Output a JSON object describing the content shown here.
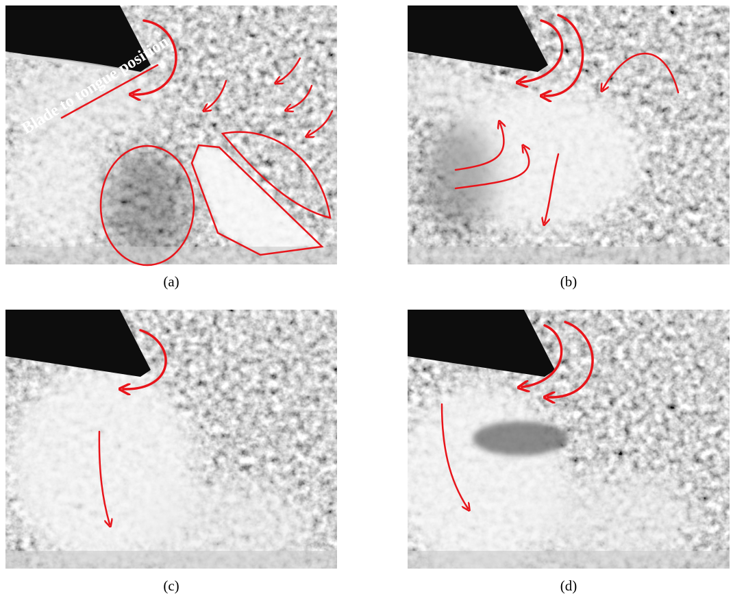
{
  "panels": [
    {
      "label": "(a)",
      "annotation": "Blade to tongue position"
    },
    {
      "label": "(b)"
    },
    {
      "label": "(c)"
    },
    {
      "label": "(d)"
    }
  ]
}
